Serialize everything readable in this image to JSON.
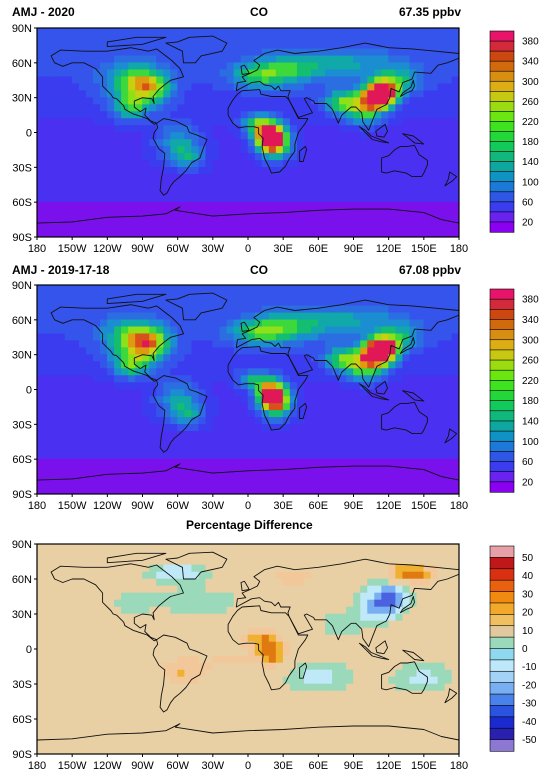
{
  "panels": [
    {
      "id": "p1",
      "title_left": "AMJ - 2020",
      "title_center": "CO",
      "title_right": "67.35 ppbv",
      "palette": "co",
      "field": "co2020",
      "colorbar": {
        "colors": [
          "#8a00f0",
          "#6a22f0",
          "#3b3cf0",
          "#2f57e6",
          "#1d79d8",
          "#0f92c4",
          "#0ea7a0",
          "#10b87c",
          "#12c95c",
          "#23d63a",
          "#3fe21e",
          "#6be610",
          "#9bdc10",
          "#c7c812",
          "#dcae14",
          "#d88e10",
          "#d06a0c",
          "#cc4810",
          "#d22a3a",
          "#e8146a"
        ],
        "labels": [
          "380",
          "340",
          "300",
          "260",
          "220",
          "180",
          "140",
          "100",
          "60",
          "20"
        ]
      }
    },
    {
      "id": "p2",
      "title_left": "AMJ - 2019-17-18",
      "title_center": "CO",
      "title_right": "67.08 ppbv",
      "palette": "co",
      "field": "coavg",
      "colorbar": {
        "colors": [
          "#8a00f0",
          "#6a22f0",
          "#3b3cf0",
          "#2f57e6",
          "#1d79d8",
          "#0f92c4",
          "#0ea7a0",
          "#10b87c",
          "#12c95c",
          "#23d63a",
          "#3fe21e",
          "#6be610",
          "#9bdc10",
          "#c7c812",
          "#dcae14",
          "#d88e10",
          "#d06a0c",
          "#cc4810",
          "#d22a3a",
          "#e8146a"
        ],
        "labels": [
          "380",
          "340",
          "300",
          "260",
          "220",
          "180",
          "140",
          "100",
          "60",
          "20"
        ]
      }
    },
    {
      "id": "p3",
      "title_left": "",
      "title_center": "Percentage Difference",
      "title_right": "",
      "palette": "diff",
      "field": "pct",
      "colorbar": {
        "colors": [
          "#8c78d2",
          "#2a20b0",
          "#1a2ad0",
          "#2a54e0",
          "#4a82ec",
          "#78aef2",
          "#a4d2f6",
          "#bde8fa",
          "#8ed8f0",
          "#9ad9b9",
          "#e2c89e",
          "#f0c060",
          "#f2a828",
          "#f08a10",
          "#e86010",
          "#d83010",
          "#c01818",
          "#e8a0a8"
        ],
        "labels": [
          "50",
          "40",
          "30",
          "20",
          "10",
          "0",
          "-10",
          "-20",
          "-30",
          "-40",
          "-50"
        ]
      }
    }
  ],
  "axes": {
    "lat_labels": [
      "90N",
      "60N",
      "30N",
      "0",
      "30S",
      "60S",
      "90S"
    ],
    "lon_labels": [
      "180",
      "150W",
      "120W",
      "90W",
      "60W",
      "30W",
      "0",
      "30E",
      "60E",
      "90E",
      "120E",
      "150E",
      "180"
    ]
  }
}
